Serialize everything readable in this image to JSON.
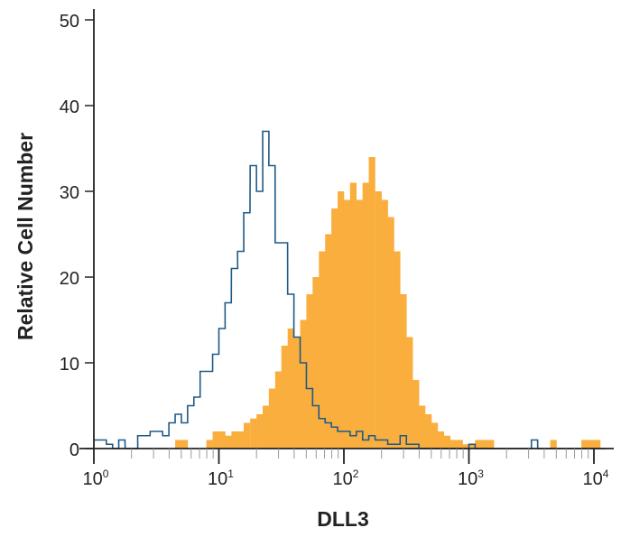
{
  "chart_data": {
    "type": "histogram",
    "xlabel": "DLL3",
    "ylabel": "Relative Cell Number",
    "xscale": "log",
    "xlim": [
      1,
      12000
    ],
    "ylim": [
      0,
      50
    ],
    "x_ticks": [
      {
        "base": "10",
        "exp": "0",
        "value": 1
      },
      {
        "base": "10",
        "exp": "1",
        "value": 10
      },
      {
        "base": "10",
        "exp": "2",
        "value": 100
      },
      {
        "base": "10",
        "exp": "3",
        "value": 1000
      },
      {
        "base": "10",
        "exp": "4",
        "value": 10000
      }
    ],
    "y_ticks": [
      "0",
      "10",
      "20",
      "30",
      "40",
      "50"
    ],
    "grid": false,
    "x": [
      1,
      1.12,
      1.26,
      1.41,
      1.58,
      1.78,
      2,
      2.24,
      2.51,
      2.82,
      3.16,
      3.55,
      3.98,
      4.47,
      5.01,
      5.62,
      6.31,
      7.08,
      7.94,
      8.91,
      10,
      11.2,
      12.6,
      14.1,
      15.8,
      17.8,
      20,
      22.4,
      25.1,
      28.2,
      31.6,
      35.5,
      39.8,
      44.7,
      50.1,
      56.2,
      63.1,
      70.8,
      79.4,
      89.1,
      100,
      112,
      126,
      141,
      158,
      178,
      200,
      224,
      251,
      282,
      316,
      355,
      398,
      447,
      501,
      562,
      631,
      708,
      794,
      891,
      1000,
      1120,
      1260,
      1410,
      1580,
      1780,
      2000,
      2240,
      2510,
      2820,
      3160,
      3550,
      3980,
      4470,
      5010,
      5620,
      6310,
      7080,
      7940,
      8910,
      10000,
      11200
    ],
    "series": [
      {
        "style": "filled",
        "color": "#F9AE3D",
        "values": [
          0,
          0,
          0,
          0,
          0,
          0,
          0,
          0,
          0,
          0,
          0,
          0,
          0,
          1,
          1,
          0,
          0,
          0,
          1,
          2,
          2,
          1.5,
          2,
          2,
          3,
          3.5,
          4,
          5,
          7,
          9,
          12,
          14,
          13,
          15,
          18,
          20,
          23,
          25,
          28,
          30,
          29,
          31,
          29,
          31,
          34,
          30,
          29,
          27,
          23,
          18,
          13,
          8,
          5,
          4,
          3,
          2,
          1.5,
          1,
          1,
          0.5,
          0.5,
          1,
          1,
          1,
          0,
          0,
          0,
          0,
          0,
          0,
          0,
          0,
          0,
          1,
          0,
          0,
          0,
          0,
          1,
          1,
          1,
          0
        ]
      },
      {
        "style": "outline",
        "color": "#1F5A87",
        "values": [
          1,
          1,
          0.5,
          0,
          1,
          0,
          0,
          1.5,
          1.5,
          2,
          2,
          1.5,
          3,
          4,
          3,
          5,
          6,
          9,
          9,
          11,
          14,
          17,
          21,
          23,
          27.5,
          33,
          30,
          37,
          33,
          24,
          24,
          18,
          13,
          10,
          7,
          5,
          3.5,
          3,
          2.5,
          2,
          2,
          1.5,
          2,
          1,
          1.5,
          1,
          1,
          0.5,
          0.5,
          1.5,
          0.5,
          0.5,
          0,
          0,
          0,
          0,
          0,
          0,
          0,
          0,
          0.5,
          0,
          0,
          0,
          0,
          0,
          0,
          0,
          0,
          0,
          1,
          0,
          0,
          0,
          0,
          0,
          0,
          0,
          0,
          0,
          0,
          0
        ]
      }
    ],
    "axis_color": "#222222"
  }
}
